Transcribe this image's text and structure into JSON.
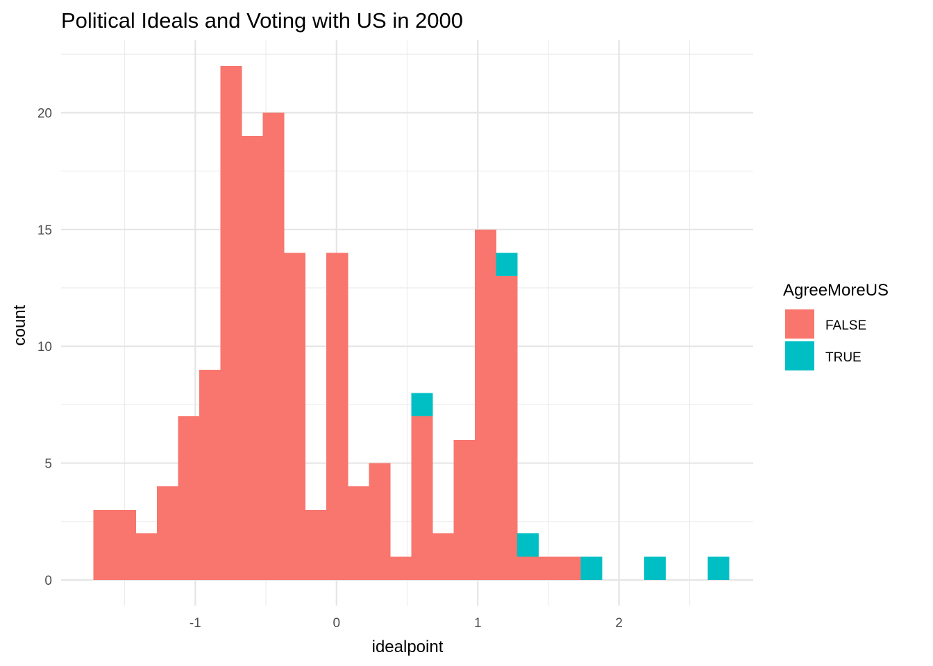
{
  "chart_data": {
    "type": "bar",
    "subtype": "stacked-histogram",
    "title": "Political Ideals and Voting with US in 2000",
    "xlabel": "idealpoint",
    "ylabel": "count",
    "xlim": [
      -1.95,
      2.95
    ],
    "ylim": [
      -1.1,
      23.1
    ],
    "x_ticks": [
      -1,
      0,
      1,
      2
    ],
    "x_tick_labels": [
      "-1",
      "0",
      "1",
      "2"
    ],
    "y_ticks": [
      0,
      5,
      10,
      15,
      20
    ],
    "y_tick_labels": [
      "0",
      "5",
      "10",
      "15",
      "20"
    ],
    "grid": true,
    "legend_position": "right",
    "legend_title": "AgreeMoreUS",
    "bin_width": 0.15,
    "bin_starts": [
      -1.7214,
      -1.5714,
      -1.4214,
      -1.2714,
      -1.1214,
      -0.9714,
      -0.8214,
      -0.6714,
      -0.5214,
      -0.3714,
      -0.2214,
      -0.0714,
      0.0786,
      0.2286,
      0.3786,
      0.5286,
      0.6786,
      0.8286,
      0.9786,
      1.1286,
      1.2786,
      1.4286,
      1.5786,
      1.7286,
      1.8786,
      2.0286,
      2.1786,
      2.3286,
      2.4786,
      2.6286
    ],
    "series": [
      {
        "name": "FALSE",
        "color": "#F8766D",
        "values": [
          3,
          3,
          2,
          4,
          7,
          9,
          22,
          19,
          20,
          14,
          3,
          14,
          4,
          5,
          1,
          7,
          2,
          6,
          15,
          13,
          1,
          1,
          1,
          0,
          0,
          0,
          0,
          0,
          0,
          0
        ]
      },
      {
        "name": "TRUE",
        "color": "#00BFC4",
        "values": [
          0,
          0,
          0,
          0,
          0,
          0,
          0,
          0,
          0,
          0,
          0,
          0,
          0,
          0,
          0,
          1,
          0,
          0,
          0,
          1,
          1,
          0,
          0,
          1,
          0,
          0,
          1,
          0,
          0,
          1
        ]
      }
    ]
  }
}
